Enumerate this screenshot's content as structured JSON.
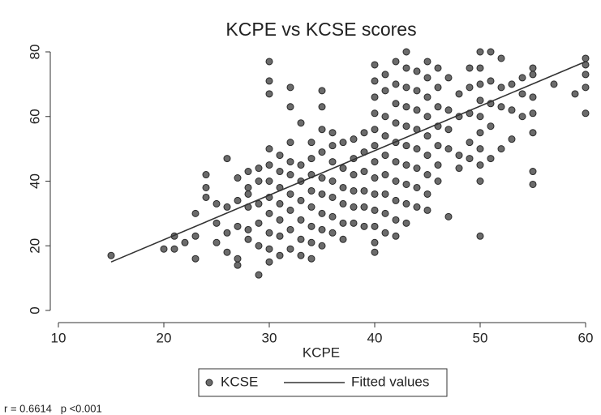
{
  "chart_data": {
    "type": "scatter",
    "title": "KCPE vs KCSE scores",
    "x_label": "KCPE",
    "annotation": "r = 0.6614   p <0.001",
    "xlim": [
      10,
      60
    ],
    "xticks": [
      10,
      20,
      30,
      40,
      50,
      60
    ],
    "ylim": [
      0,
      80
    ],
    "yticks": [
      0,
      20,
      40,
      60,
      80
    ],
    "legend": "bottom",
    "series": [
      {
        "name": "KCSE",
        "color": "#6b6b6b",
        "type": "scatter",
        "x": [
          15,
          20,
          21,
          21,
          22,
          23,
          23,
          23,
          24,
          24,
          24,
          25,
          25,
          25,
          26,
          26,
          26,
          26,
          27,
          27,
          27,
          27,
          27,
          28,
          28,
          28,
          28,
          28,
          28,
          29,
          29,
          29,
          29,
          29,
          29,
          30,
          30,
          30,
          30,
          30,
          30,
          30,
          30,
          30,
          30,
          30,
          31,
          31,
          31,
          31,
          31,
          31,
          31,
          32,
          32,
          32,
          32,
          32,
          32,
          32,
          32,
          32,
          33,
          33,
          33,
          33,
          33,
          33,
          33,
          34,
          34,
          34,
          34,
          34,
          34,
          34,
          34,
          35,
          35,
          35,
          35,
          35,
          35,
          35,
          35,
          35,
          36,
          36,
          36,
          36,
          36,
          36,
          36,
          37,
          37,
          37,
          37,
          37,
          37,
          38,
          38,
          38,
          38,
          38,
          38,
          39,
          39,
          39,
          39,
          39,
          39,
          40,
          40,
          40,
          40,
          40,
          40,
          40,
          40,
          40,
          40,
          40,
          40,
          40,
          41,
          41,
          41,
          41,
          41,
          41,
          41,
          41,
          41,
          42,
          42,
          42,
          42,
          42,
          42,
          42,
          42,
          42,
          42,
          43,
          43,
          43,
          43,
          43,
          43,
          43,
          43,
          43,
          43,
          44,
          44,
          44,
          44,
          44,
          44,
          44,
          44,
          45,
          45,
          45,
          45,
          45,
          45,
          45,
          45,
          45,
          46,
          46,
          46,
          46,
          46,
          46,
          46,
          47,
          47,
          47,
          47,
          47,
          48,
          48,
          48,
          48,
          49,
          49,
          49,
          49,
          49,
          50,
          50,
          50,
          50,
          50,
          50,
          50,
          50,
          50,
          50,
          51,
          51,
          51,
          51,
          51,
          52,
          52,
          52,
          52,
          53,
          53,
          53,
          54,
          54,
          54,
          55,
          55,
          55,
          55,
          55,
          55,
          55,
          57,
          59,
          60,
          60,
          60,
          60,
          60
        ],
        "values": [
          17,
          19,
          19,
          23,
          21,
          16,
          23,
          30,
          38,
          42,
          35,
          21,
          27,
          33,
          18,
          24,
          32,
          47,
          14,
          16,
          26,
          34,
          41,
          22,
          25,
          32,
          36,
          38,
          43,
          11,
          20,
          27,
          33,
          40,
          44,
          15,
          19,
          24,
          30,
          35,
          40,
          45,
          50,
          67,
          71,
          77,
          17,
          23,
          28,
          33,
          38,
          43,
          48,
          19,
          25,
          31,
          36,
          42,
          46,
          52,
          63,
          69,
          17,
          22,
          28,
          34,
          40,
          45,
          58,
          16,
          21,
          26,
          32,
          37,
          42,
          47,
          52,
          20,
          25,
          30,
          36,
          41,
          49,
          56,
          63,
          68,
          24,
          29,
          35,
          40,
          46,
          51,
          55,
          22,
          27,
          33,
          38,
          44,
          52,
          27,
          32,
          37,
          42,
          47,
          53,
          26,
          32,
          37,
          43,
          49,
          55,
          18,
          21,
          26,
          31,
          36,
          41,
          46,
          51,
          56,
          61,
          66,
          71,
          76,
          24,
          30,
          36,
          42,
          48,
          54,
          60,
          68,
          73,
          23,
          28,
          34,
          40,
          46,
          52,
          58,
          64,
          70,
          77,
          27,
          33,
          39,
          45,
          51,
          57,
          63,
          69,
          75,
          80,
          32,
          38,
          44,
          50,
          56,
          62,
          68,
          74,
          31,
          36,
          42,
          48,
          54,
          60,
          66,
          72,
          77,
          40,
          45,
          51,
          57,
          63,
          69,
          75,
          29,
          50,
          56,
          62,
          72,
          44,
          48,
          60,
          67,
          47,
          52,
          61,
          69,
          75,
          23,
          40,
          45,
          50,
          55,
          60,
          65,
          70,
          75,
          80,
          47,
          57,
          64,
          71,
          80,
          50,
          63,
          69,
          78,
          53,
          62,
          70,
          60,
          67,
          72,
          39,
          43,
          55,
          61,
          66,
          73,
          75,
          70,
          67,
          61,
          69,
          73,
          76,
          78
        ]
      },
      {
        "name": "Fitted values",
        "color": "#333333",
        "type": "line",
        "x": [
          15,
          60
        ],
        "values": [
          15,
          77
        ]
      }
    ]
  }
}
